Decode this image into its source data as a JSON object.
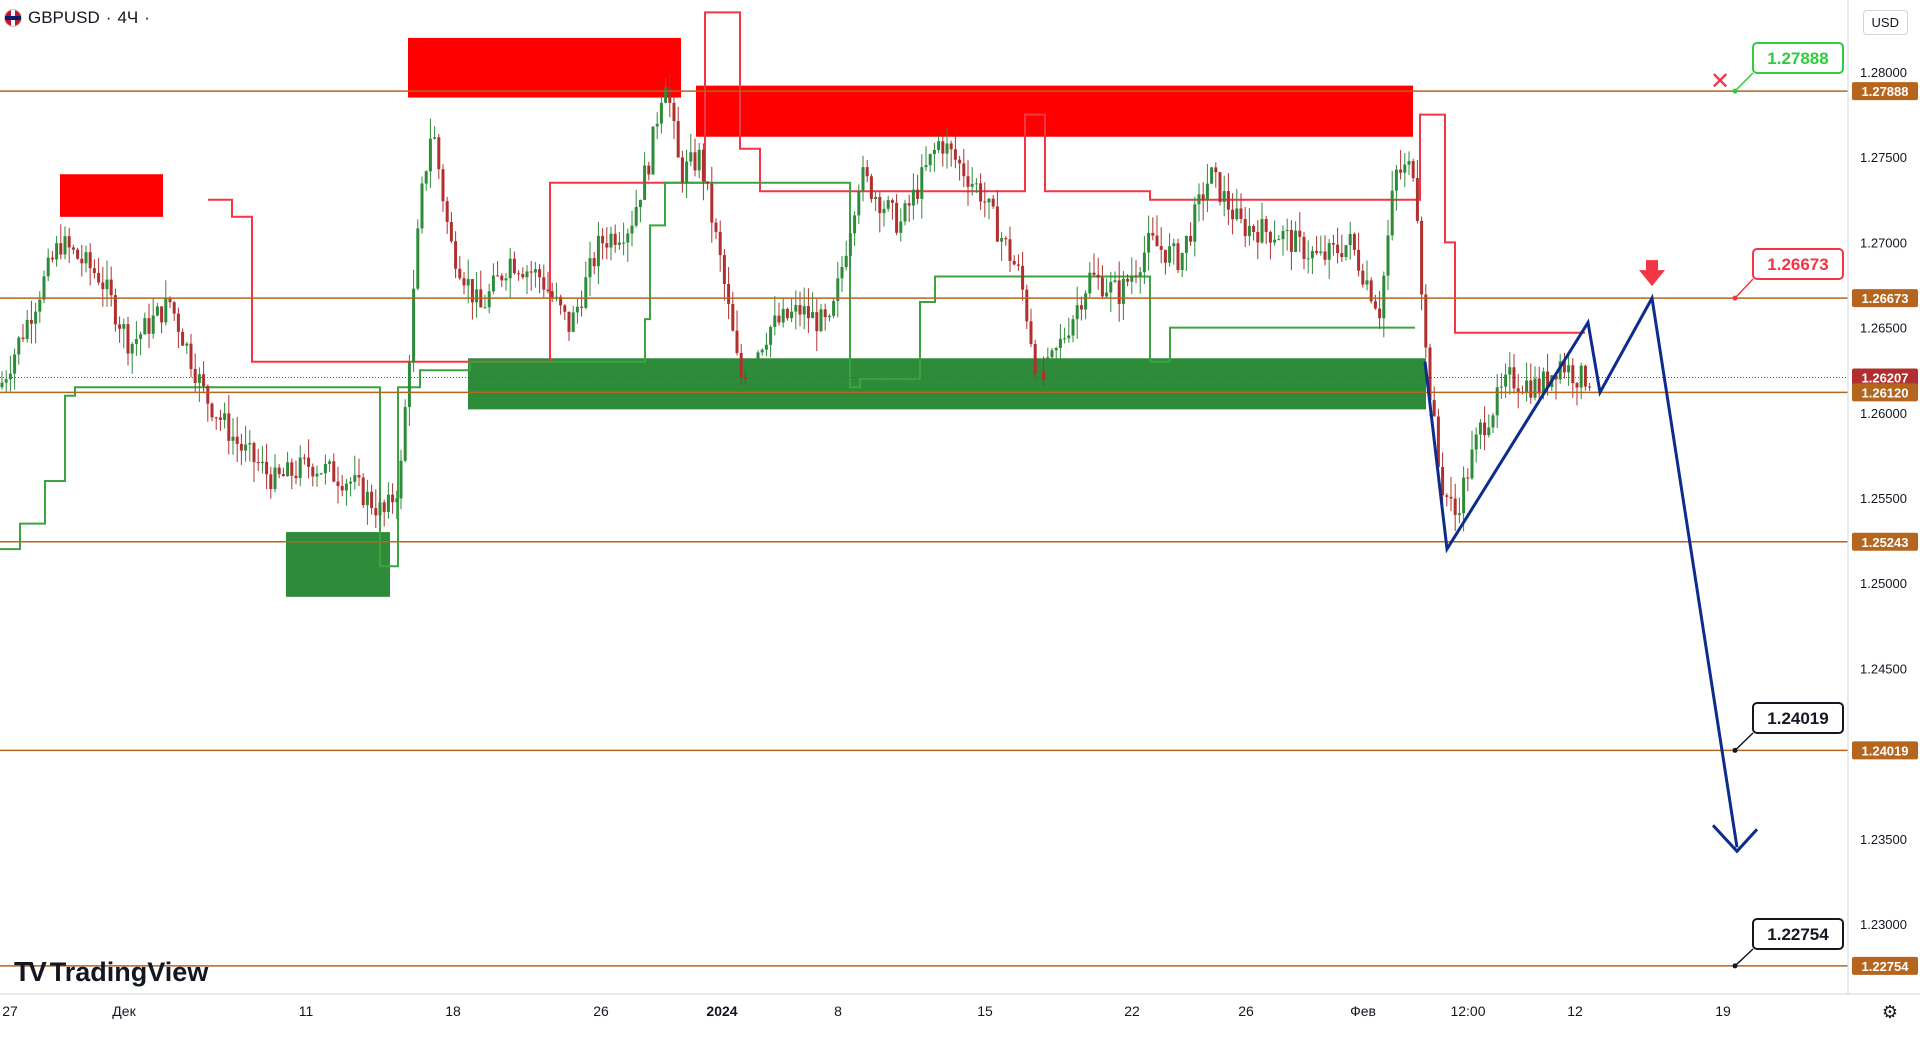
{
  "header": {
    "symbol": "GBPUSD",
    "sep1": "·",
    "timeframe": "4Ч",
    "sep2": "·",
    "currency": "USD"
  },
  "brand": {
    "name": "TradingView"
  },
  "colors": {
    "level_line": "#b5651d",
    "supply_zone": "#ff0000",
    "demand_zone": "#2e8b3a",
    "forecast": "#0d2c8c",
    "bull_candle": "#2e8b3a",
    "bear_candle": "#b03030",
    "resistance_trail": "#f23645",
    "support_trail": "#3ca341"
  },
  "chart_data": {
    "type": "candlestick",
    "x_tick_labels": [
      "27",
      "Дек",
      "11",
      "18",
      "26",
      "2024",
      "8",
      "15",
      "22",
      "26",
      "Фев",
      "12:00",
      "12",
      "19"
    ],
    "y_tick_labels": [
      "1.28000",
      "1.27500",
      "1.27000",
      "1.26500",
      "1.26000",
      "1.25500",
      "1.25000",
      "1.24500",
      "1.23500",
      "1.23000"
    ],
    "ylim": [
      1.2222,
      1.2835
    ],
    "horizontal_levels": [
      1.27888,
      1.26673,
      1.26207,
      1.2612,
      1.25243,
      1.24019,
      1.22754
    ],
    "price_axis_labels": [
      "1.27888",
      "1.26673",
      "1.26207",
      "1.26120",
      "1.25243",
      "1.24019",
      "1.22754"
    ],
    "callouts": [
      "1.27888",
      "1.26673",
      "1.24019",
      "1.22754"
    ],
    "current_price": 1.26207,
    "supply_zones": [
      {
        "start": "27",
        "end": "Дек",
        "low": 1.2715,
        "high": 1.274
      },
      {
        "start": "16",
        "end": "28",
        "low": 1.2785,
        "high": 1.282
      },
      {
        "start": "29",
        "end": "Фев",
        "low": 1.2762,
        "high": 1.2792
      }
    ],
    "demand_zones": [
      {
        "start": "11",
        "end": "15",
        "low": 1.2492,
        "high": 1.253
      },
      {
        "start": "19",
        "end": "Фев",
        "low": 1.2602,
        "high": 1.2632
      }
    ],
    "forecast_path": [
      1.263,
      1.252,
      1.2653,
      1.2612,
      1.26673,
      1.2345
    ],
    "legend": "none",
    "grid": false,
    "notes": [
      "resistance trailing stop (red) above price",
      "support trailing stop (green) below price",
      "red x marks target 1.27888",
      "red arrow marks entry 1.26673"
    ]
  }
}
